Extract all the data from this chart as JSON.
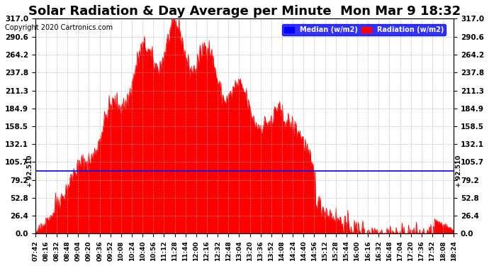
{
  "title": "Solar Radiation & Day Average per Minute  Mon Mar 9 18:32",
  "copyright": "Copyright 2020 Cartronics.com",
  "median_value": 92.51,
  "ymax": 317.0,
  "ymin": 0.0,
  "yticks": [
    0.0,
    26.4,
    52.8,
    79.2,
    105.7,
    132.1,
    158.5,
    184.9,
    211.3,
    237.8,
    264.2,
    290.6,
    317.0
  ],
  "ytick_labels": [
    "0.0",
    "26.4",
    "52.8",
    "79.2",
    "105.7",
    "132.1",
    "158.5",
    "184.9",
    "211.3",
    "237.8",
    "264.2",
    "290.6",
    "317.0"
  ],
  "xtick_labels": [
    "07:42",
    "08:16",
    "08:32",
    "08:48",
    "09:04",
    "09:20",
    "09:36",
    "09:52",
    "10:08",
    "10:24",
    "10:40",
    "10:56",
    "11:12",
    "11:28",
    "11:44",
    "12:00",
    "12:16",
    "12:32",
    "12:48",
    "13:04",
    "13:20",
    "13:36",
    "13:52",
    "14:08",
    "14:24",
    "14:40",
    "14:56",
    "15:12",
    "15:28",
    "15:44",
    "16:00",
    "16:16",
    "16:32",
    "16:48",
    "17:04",
    "17:20",
    "17:36",
    "17:52",
    "18:08",
    "18:24"
  ],
  "title_fontsize": 13,
  "axis_label_color": "#000000",
  "background_color": "#ffffff",
  "fill_color": "#ff0000",
  "median_color": "#0000ff",
  "grid_color": "#aaaaaa",
  "median_label": "Median (w/m2)",
  "radiation_label": "Radiation (w/m2)",
  "left_median_label": "92.510",
  "right_median_label": "92.510"
}
